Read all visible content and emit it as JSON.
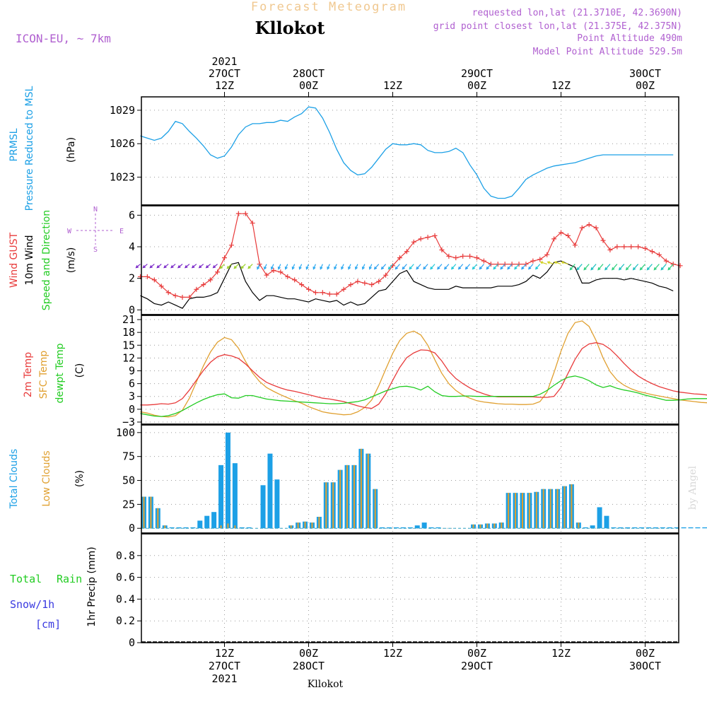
{
  "header": {
    "title_top": "Forecast Meteogram",
    "location": "Kllokot",
    "model": "ICON-EU, ~ 7km",
    "requested": "requested lon,lat (21.3710E, 42.3690N)",
    "grid_point": "grid point closest lon,lat (21.375E, 42.375N)",
    "point_altitude": "Point Altitude 490m",
    "model_altitude": "Model Point Altitude 529.5m"
  },
  "time_axis": {
    "top_labels": [
      {
        "l1": "2021",
        "l2": "27OCT",
        "l3": "12Z",
        "t": 12
      },
      {
        "l1": "",
        "l2": "28OCT",
        "l3": "00Z",
        "t": 24
      },
      {
        "l1": "",
        "l2": "",
        "l3": "12Z",
        "t": 36
      },
      {
        "l1": "",
        "l2": "29OCT",
        "l3": "00Z",
        "t": 48
      },
      {
        "l1": "",
        "l2": "",
        "l3": "12Z",
        "t": 60
      },
      {
        "l1": "",
        "l2": "30OCT",
        "l3": "00Z",
        "t": 72
      }
    ],
    "bottom_labels": [
      {
        "l1": "12Z",
        "l2": "27OCT",
        "l3": "2021",
        "t": 12
      },
      {
        "l1": "00Z",
        "l2": "28OCT",
        "l3": "",
        "t": 24
      },
      {
        "l1": "12Z",
        "l2": "",
        "l3": "",
        "t": 36
      },
      {
        "l1": "00Z",
        "l2": "29OCT",
        "l3": "",
        "t": 48
      },
      {
        "l1": "12Z",
        "l2": "",
        "l3": "",
        "t": 60
      },
      {
        "l1": "00Z",
        "l2": "30OCT",
        "l3": "",
        "t": 72
      }
    ],
    "footer_location": "Kllokot"
  },
  "colors": {
    "pressure": "#1ca0e6",
    "gust": "#e83b3b",
    "wind": "#000000",
    "temp2m": "#e83b3b",
    "sfc_temp": "#e0a030",
    "dewpt": "#22cc22",
    "total_clouds": "#1ca0e6",
    "low_clouds": "#e0a030",
    "header_purple": "#b060d0",
    "title_orange": "#f0c890"
  },
  "panel_labels": {
    "pressure": [
      "PRMSL",
      "Pressure Reduced to MSL",
      "(hPa)"
    ],
    "wind": [
      "Wind GUST",
      "10m Wind",
      "Speed and Direction",
      "(m/s)"
    ],
    "compass": {
      "n": "N",
      "s": "S",
      "w": "W",
      "e": "E"
    },
    "temp": [
      "2m Temp",
      "SFC Temp",
      "dewpt Temp",
      "(C)"
    ],
    "clouds": [
      "Total Clouds",
      "Low Clouds",
      "(%)"
    ],
    "precip": [
      "Total",
      "Rain",
      "Snow/1h",
      "[cm]",
      "1hr Precip (mm)"
    ]
  },
  "watermark": "by Angel",
  "chart_data": [
    {
      "type": "line",
      "title": "PRMSL",
      "ylabel": "(hPa)",
      "ylim": [
        1020.5,
        1030.2
      ],
      "yticks": [
        1023,
        1026,
        1029
      ],
      "grid": true,
      "x_unit": "hours since 27OCT 00Z",
      "series": [
        {
          "name": "PRMSL",
          "x": [
            0,
            1,
            2,
            3,
            4,
            5,
            6,
            7,
            8,
            9,
            10,
            11,
            12,
            13,
            14,
            15,
            16,
            17,
            18,
            19,
            20,
            21,
            22,
            23,
            24,
            25,
            26,
            27,
            28,
            29,
            30,
            31,
            32,
            33,
            34,
            35,
            36,
            37,
            38,
            39,
            40,
            41,
            42,
            43,
            44,
            45,
            46,
            47,
            48,
            49,
            50,
            51,
            52,
            53,
            54,
            55,
            56,
            57,
            58,
            59,
            60,
            61,
            62,
            63,
            64,
            65,
            66,
            67,
            68,
            69,
            70,
            71,
            72,
            73,
            74,
            75,
            76
          ],
          "values": [
            1026.7,
            1026.5,
            1026.3,
            1026.5,
            1027.1,
            1028.0,
            1027.8,
            1027.1,
            1026.5,
            1025.8,
            1025.0,
            1024.7,
            1024.9,
            1025.7,
            1026.8,
            1027.5,
            1027.8,
            1027.8,
            1027.9,
            1027.9,
            1028.1,
            1028.0,
            1028.4,
            1028.7,
            1029.3,
            1029.2,
            1028.3,
            1027.0,
            1025.5,
            1024.3,
            1023.6,
            1023.2,
            1023.3,
            1023.9,
            1024.7,
            1025.5,
            1026.0,
            1025.9,
            1025.9,
            1026.0,
            1025.9,
            1025.4,
            1025.2,
            1025.2,
            1025.3,
            1025.6,
            1025.2,
            1024.1,
            1023.2,
            1022.0,
            1021.3,
            1021.1,
            1021.1,
            1021.3,
            1022.0,
            1022.8,
            1023.2,
            1023.5,
            1023.8,
            1024.0,
            1024.1,
            1024.2,
            1024.3,
            1024.5,
            1024.7,
            1024.9,
            1025.0,
            1025.0,
            1025.0,
            1025.0,
            1025.0,
            1025.0,
            1025.0,
            1025.0,
            1025.0,
            1025.0,
            1025.0
          ]
        }
      ]
    },
    {
      "type": "line",
      "title": "Wind GUST / 10m Wind Speed and Direction",
      "ylabel": "(m/s)",
      "ylim": [
        -0.3,
        6.6
      ],
      "yticks": [
        0,
        2,
        4,
        6
      ],
      "grid": true,
      "series": [
        {
          "name": "Wind GUST",
          "x_start": 0,
          "x_step": 1,
          "values": [
            2.1,
            2.1,
            1.9,
            1.5,
            1.1,
            0.9,
            0.8,
            0.8,
            1.3,
            1.6,
            1.9,
            2.4,
            3.3,
            4.1,
            6.1,
            6.1,
            5.5,
            2.9,
            2.2,
            2.5,
            2.4,
            2.1,
            1.9,
            1.6,
            1.3,
            1.1,
            1.1,
            1.0,
            1.0,
            1.3,
            1.6,
            1.8,
            1.7,
            1.6,
            1.8,
            2.2,
            2.8,
            3.3,
            3.7,
            4.3,
            4.5,
            4.6,
            4.7,
            3.8,
            3.4,
            3.3,
            3.4,
            3.4,
            3.3,
            3.1,
            2.9,
            2.9,
            2.9,
            2.9,
            2.9,
            2.9,
            3.1,
            3.2,
            3.5,
            4.5,
            4.9,
            4.7,
            4.1,
            5.2,
            5.4,
            5.2,
            4.4,
            3.8,
            4.0,
            4.0,
            4.0,
            4.0,
            3.9,
            3.7,
            3.5,
            3.1,
            2.9,
            2.8
          ]
        },
        {
          "name": "10m Wind",
          "x_start": 0,
          "x_step": 1,
          "values": [
            0.9,
            0.7,
            0.4,
            0.3,
            0.5,
            0.3,
            0.1,
            0.7,
            0.8,
            0.8,
            0.9,
            1.1,
            2.0,
            2.9,
            3.0,
            1.8,
            1.1,
            0.6,
            0.9,
            0.9,
            0.8,
            0.7,
            0.7,
            0.6,
            0.5,
            0.7,
            0.6,
            0.5,
            0.6,
            0.3,
            0.5,
            0.3,
            0.4,
            0.8,
            1.2,
            1.3,
            1.8,
            2.3,
            2.5,
            1.8,
            1.6,
            1.4,
            1.3,
            1.3,
            1.3,
            1.5,
            1.4,
            1.4,
            1.4,
            1.4,
            1.4,
            1.5,
            1.5,
            1.5,
            1.6,
            1.8,
            2.2,
            2.0,
            2.4,
            3.0,
            3.1,
            2.9,
            2.7,
            1.7,
            1.7,
            1.9,
            2.0,
            2.0,
            2.0,
            1.9,
            2.0,
            1.9,
            1.8,
            1.7,
            1.5,
            1.4,
            1.2
          ]
        }
      ]
    },
    {
      "type": "line",
      "title": "2m Temp / SFC Temp / dewpt Temp",
      "ylabel": "(C)",
      "ylim": [
        -3.5,
        22
      ],
      "yticks": [
        -3,
        0,
        3,
        6,
        9,
        12,
        15,
        18,
        21
      ],
      "grid": true,
      "series": [
        {
          "name": "2m Temp",
          "x_start": 0,
          "x_step": 1,
          "values": [
            1.0,
            1.0,
            1.1,
            1.3,
            1.2,
            1.5,
            2.5,
            4.5,
            6.8,
            9.1,
            11.0,
            12.3,
            12.8,
            12.5,
            11.9,
            10.6,
            9.0,
            7.5,
            6.3,
            5.6,
            5.0,
            4.5,
            4.2,
            3.8,
            3.4,
            3.0,
            2.6,
            2.4,
            2.1,
            1.8,
            1.3,
            0.8,
            0.4,
            0.2,
            1.2,
            3.6,
            6.8,
            9.8,
            12.1,
            13.2,
            13.9,
            13.8,
            13.2,
            11.3,
            8.9,
            7.2,
            6.0,
            5.0,
            4.2,
            3.6,
            3.1,
            2.9,
            2.9,
            2.9,
            2.9,
            2.9,
            2.9,
            2.8,
            2.8,
            3.0,
            5.1,
            8.4,
            11.7,
            14.2,
            15.3,
            15.6,
            15.2,
            14.1,
            12.5,
            10.7,
            9.1,
            7.8,
            6.8,
            6.0,
            5.3,
            4.8,
            4.3,
            4.0,
            3.8,
            3.6,
            3.5,
            3.3
          ]
        },
        {
          "name": "SFC Temp",
          "x_start": 0,
          "x_step": 1,
          "values": [
            -0.6,
            -0.9,
            -1.4,
            -1.7,
            -1.8,
            -1.5,
            -0.2,
            2.6,
            6.4,
            10.2,
            13.4,
            15.7,
            16.8,
            16.3,
            14.3,
            11.2,
            8.5,
            6.5,
            5.1,
            4.2,
            3.4,
            2.7,
            2.0,
            1.4,
            0.6,
            0.0,
            -0.6,
            -0.9,
            -1.1,
            -1.3,
            -1.2,
            -0.6,
            0.4,
            2.2,
            5.5,
            9.4,
            13.1,
            16.1,
            17.8,
            18.3,
            17.4,
            15.0,
            11.6,
            8.4,
            6.0,
            4.4,
            3.3,
            2.6,
            2.0,
            1.7,
            1.5,
            1.3,
            1.2,
            1.2,
            1.1,
            1.1,
            1.2,
            1.8,
            4.0,
            8.6,
            13.6,
            17.8,
            20.3,
            20.7,
            19.4,
            16.1,
            12.0,
            8.8,
            6.8,
            5.6,
            4.8,
            4.2,
            3.8,
            3.4,
            3.1,
            2.8,
            2.5,
            2.2,
            2.0,
            1.8,
            1.6,
            1.5
          ]
        },
        {
          "name": "dewpt Temp",
          "x_start": 0,
          "x_step": 1,
          "values": [
            -1.0,
            -1.3,
            -1.6,
            -1.7,
            -1.5,
            -1.0,
            -0.3,
            0.6,
            1.5,
            2.3,
            2.9,
            3.4,
            3.6,
            2.7,
            2.6,
            3.2,
            3.2,
            2.8,
            2.4,
            2.2,
            2.0,
            1.9,
            1.8,
            1.7,
            1.6,
            1.5,
            1.4,
            1.3,
            1.3,
            1.4,
            1.6,
            1.8,
            2.2,
            2.9,
            3.6,
            4.3,
            4.8,
            5.3,
            5.4,
            5.1,
            4.5,
            5.4,
            4.1,
            3.2,
            3.0,
            3.0,
            3.1,
            3.1,
            3.0,
            3.0,
            3.0,
            3.0,
            3.0,
            3.0,
            3.0,
            3.0,
            3.0,
            3.5,
            4.4,
            5.6,
            6.7,
            7.5,
            7.8,
            7.4,
            6.7,
            5.7,
            5.1,
            5.5,
            4.9,
            4.5,
            4.2,
            3.8,
            3.3,
            2.9,
            2.5,
            2.1,
            2.1,
            2.2,
            2.4,
            2.5,
            2.5,
            2.5
          ]
        }
      ]
    },
    {
      "type": "bar",
      "title": "Total Clouds / Low Clouds",
      "ylabel": "(%)",
      "ylim": [
        -5,
        108
      ],
      "yticks": [
        0,
        25,
        50,
        75,
        100
      ],
      "grid": true,
      "series": [
        {
          "name": "Total Clouds",
          "x_start": 0,
          "x_step": 1,
          "values": [
            33,
            33,
            21,
            3,
            1,
            1,
            1,
            1,
            8,
            13,
            17,
            66,
            100,
            68,
            1,
            1,
            0,
            45,
            78,
            51,
            0,
            3,
            6,
            7,
            6,
            12,
            48,
            48,
            61,
            66,
            66,
            83,
            78,
            41,
            1,
            1,
            1,
            1,
            1,
            3,
            6,
            1,
            1,
            0,
            0,
            0,
            0,
            4,
            4,
            5,
            5,
            6,
            37,
            37,
            37,
            37,
            38,
            41,
            41,
            41,
            44,
            46,
            6,
            1,
            3,
            22,
            13,
            1,
            1,
            1,
            1,
            1,
            1,
            1,
            1,
            1,
            1,
            1,
            1,
            1,
            1,
            1,
            1,
            1,
            1,
            1,
            1,
            1,
            1,
            1,
            2
          ]
        },
        {
          "name": "Low Clouds",
          "x_start": 0,
          "x_step": 1,
          "values": [
            33,
            33,
            21,
            3,
            0,
            0,
            0,
            0,
            0,
            0,
            0,
            3,
            5,
            3,
            0,
            0,
            0,
            0,
            0,
            0,
            0,
            3,
            6,
            7,
            6,
            12,
            48,
            48,
            61,
            66,
            66,
            83,
            78,
            41,
            0,
            0,
            0,
            0,
            0,
            0,
            0,
            0,
            0,
            0,
            0,
            0,
            0,
            4,
            4,
            5,
            5,
            6,
            37,
            37,
            37,
            37,
            38,
            41,
            41,
            41,
            44,
            46,
            6,
            0,
            0,
            0,
            0,
            0,
            0,
            0,
            0,
            0,
            0,
            0,
            0,
            0,
            0,
            0,
            0,
            0,
            0,
            0,
            0,
            0,
            0,
            0,
            0,
            0,
            0,
            0,
            1
          ]
        }
      ]
    },
    {
      "type": "bar",
      "title": "Total Rain / Snow 1hr Precip",
      "ylabel": "1hr Precip (mm)",
      "ylim": [
        0,
        1.0
      ],
      "yticks": [
        0,
        0.2,
        0.4,
        0.6,
        0.8
      ],
      "grid": true,
      "series": [
        {
          "name": "Total Rain",
          "x_start": 0,
          "x_step": 1,
          "values": []
        },
        {
          "name": "Snow/1h",
          "x_start": 0,
          "x_step": 1,
          "values": []
        }
      ]
    }
  ]
}
